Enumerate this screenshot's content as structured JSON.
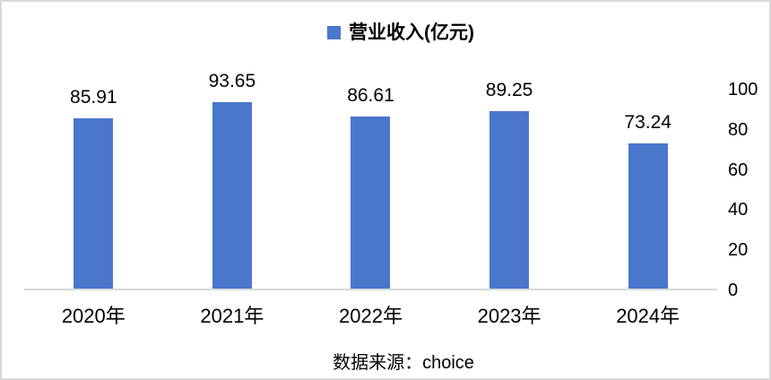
{
  "chart_data": {
    "type": "bar",
    "title": "",
    "categories": [
      "2020年",
      "2021年",
      "2022年",
      "2023年",
      "2024年"
    ],
    "values": [
      85.91,
      93.65,
      86.61,
      89.25,
      73.24
    ],
    "data_labels": [
      "85.91",
      "93.65",
      "86.61",
      "89.25",
      "73.24"
    ],
    "series_name": "营业收入(亿元)",
    "y_ticks": [
      0,
      20,
      40,
      60,
      80,
      100
    ],
    "ylim": [
      0,
      100
    ],
    "y_axis_side": "right",
    "legend_position": "top",
    "grid": false,
    "data_labels_shown": true,
    "bar_color": "#4a76cc",
    "axis_line_color": "#d9d9d9",
    "text_color": "#000000"
  },
  "legend": {
    "label": "营业收入(亿元)",
    "marker_color": "#4a76cc"
  },
  "footer": {
    "source_label": "数据来源：choice"
  }
}
